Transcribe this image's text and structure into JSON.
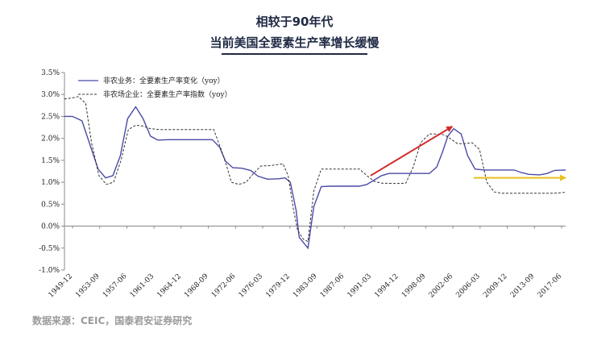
{
  "header": {
    "title": "相较于90年代",
    "subtitle": "当前美国全要素生产率增长缓慢"
  },
  "source": "数据来源：CEIC，国泰君安证券研究",
  "colors": {
    "series1": "#4a4aa8",
    "series2": "#333333",
    "red_arrow": "#d32a2a",
    "yellow_arrow": "#e8c21a",
    "title": "#1f2a44",
    "axis": "#888888"
  },
  "chart_data": {
    "type": "line",
    "x_tick_labels": [
      "1949-12",
      "1953-09",
      "1957-06",
      "1961-03",
      "1964-12",
      "1968-09",
      "1972-06",
      "1976-03",
      "1979-12",
      "1983-09",
      "1987-06",
      "1991-03",
      "1994-12",
      "1998-09",
      "2002-06",
      "2006-03",
      "2009-12",
      "2013-09",
      "2017-06"
    ],
    "y_tick_labels": [
      "-1.0%",
      "-0.5%",
      "0.0%",
      "0.5%",
      "1.0%",
      "1.5%",
      "2.0%",
      "2.5%",
      "3.0%",
      "3.5%"
    ],
    "ylim": [
      -1.0,
      3.5
    ],
    "xlim": [
      1949.92,
      2018.0
    ],
    "grid": false,
    "legend_position": "top-left",
    "series": [
      {
        "name": "非农业务：全要素生产率变化（yoy）",
        "style": "solid",
        "points": [
          [
            1949.9,
            2.5
          ],
          [
            1951.0,
            2.5
          ],
          [
            1952.3,
            2.4
          ],
          [
            1953.5,
            1.8
          ],
          [
            1954.5,
            1.3
          ],
          [
            1955.5,
            1.1
          ],
          [
            1956.5,
            1.15
          ],
          [
            1957.5,
            1.6
          ],
          [
            1958.5,
            2.45
          ],
          [
            1959.6,
            2.72
          ],
          [
            1960.6,
            2.45
          ],
          [
            1961.6,
            2.05
          ],
          [
            1962.6,
            1.96
          ],
          [
            1964.0,
            1.97
          ],
          [
            1966.0,
            1.97
          ],
          [
            1968.0,
            1.97
          ],
          [
            1970.0,
            1.97
          ],
          [
            1971.0,
            1.8
          ],
          [
            1971.8,
            1.48
          ],
          [
            1972.8,
            1.33
          ],
          [
            1974.0,
            1.32
          ],
          [
            1975.2,
            1.27
          ],
          [
            1976.2,
            1.14
          ],
          [
            1977.5,
            1.07
          ],
          [
            1979.0,
            1.08
          ],
          [
            1979.9,
            1.1
          ],
          [
            1980.6,
            1.0
          ],
          [
            1981.4,
            0.35
          ],
          [
            1981.8,
            -0.25
          ],
          [
            1982.5,
            -0.4
          ],
          [
            1983.0,
            -0.5
          ],
          [
            1983.8,
            0.45
          ],
          [
            1984.8,
            0.9
          ],
          [
            1986.0,
            0.91
          ],
          [
            1988.0,
            0.91
          ],
          [
            1990.0,
            0.91
          ],
          [
            1991.0,
            0.95
          ],
          [
            1992.0,
            1.05
          ],
          [
            1993.0,
            1.15
          ],
          [
            1994.0,
            1.2
          ],
          [
            1996.0,
            1.2
          ],
          [
            1998.0,
            1.2
          ],
          [
            1999.5,
            1.2
          ],
          [
            2000.5,
            1.35
          ],
          [
            2001.3,
            1.7
          ],
          [
            2002.0,
            2.05
          ],
          [
            2002.8,
            2.22
          ],
          [
            2003.8,
            2.1
          ],
          [
            2004.7,
            1.6
          ],
          [
            2005.7,
            1.3
          ],
          [
            2007.0,
            1.28
          ],
          [
            2009.0,
            1.28
          ],
          [
            2011.0,
            1.28
          ],
          [
            2012.0,
            1.22
          ],
          [
            2013.0,
            1.18
          ],
          [
            2014.5,
            1.17
          ],
          [
            2015.5,
            1.2
          ],
          [
            2016.5,
            1.27
          ],
          [
            2018.0,
            1.28
          ]
        ]
      },
      {
        "name": "非农场企业：全要素生产率指数（yoy）",
        "style": "dashed",
        "points": [
          [
            1949.9,
            2.9
          ],
          [
            1950.9,
            2.92
          ],
          [
            1951.8,
            2.95
          ],
          [
            1952.8,
            2.8
          ],
          [
            1953.6,
            1.9
          ],
          [
            1954.6,
            1.15
          ],
          [
            1955.6,
            0.95
          ],
          [
            1956.6,
            1.0
          ],
          [
            1957.6,
            1.5
          ],
          [
            1958.6,
            2.2
          ],
          [
            1959.6,
            2.3
          ],
          [
            1960.6,
            2.28
          ],
          [
            1961.6,
            2.22
          ],
          [
            1963.0,
            2.2
          ],
          [
            1965.0,
            2.2
          ],
          [
            1967.0,
            2.2
          ],
          [
            1969.0,
            2.2
          ],
          [
            1970.2,
            2.2
          ],
          [
            1971.2,
            1.75
          ],
          [
            1971.9,
            1.4
          ],
          [
            1972.6,
            1.0
          ],
          [
            1973.6,
            0.95
          ],
          [
            1974.6,
            1.0
          ],
          [
            1975.6,
            1.2
          ],
          [
            1976.6,
            1.37
          ],
          [
            1978.0,
            1.38
          ],
          [
            1979.6,
            1.42
          ],
          [
            1980.3,
            1.15
          ],
          [
            1981.0,
            0.4
          ],
          [
            1981.6,
            -0.1
          ],
          [
            1982.4,
            -0.3
          ],
          [
            1983.0,
            -0.35
          ],
          [
            1983.8,
            0.8
          ],
          [
            1984.8,
            1.3
          ],
          [
            1986.0,
            1.3
          ],
          [
            1988.0,
            1.3
          ],
          [
            1990.0,
            1.3
          ],
          [
            1991.0,
            1.15
          ],
          [
            1992.0,
            1.02
          ],
          [
            1993.0,
            0.98
          ],
          [
            1995.0,
            0.97
          ],
          [
            1996.3,
            0.98
          ],
          [
            1997.3,
            1.35
          ],
          [
            1998.3,
            1.9
          ],
          [
            1999.5,
            2.1
          ],
          [
            2000.5,
            2.1
          ],
          [
            2001.5,
            2.08
          ],
          [
            2002.3,
            2.0
          ],
          [
            2003.3,
            1.88
          ],
          [
            2004.3,
            1.88
          ],
          [
            2005.3,
            1.9
          ],
          [
            2006.3,
            1.75
          ],
          [
            2007.3,
            1.0
          ],
          [
            2008.3,
            0.78
          ],
          [
            2009.3,
            0.75
          ],
          [
            2011.0,
            0.75
          ],
          [
            2013.0,
            0.75
          ],
          [
            2015.0,
            0.75
          ],
          [
            2016.5,
            0.75
          ],
          [
            2018.0,
            0.77
          ]
        ]
      }
    ],
    "annotations": [
      {
        "type": "arrow",
        "color": "red",
        "from": [
          1991.5,
          1.15
        ],
        "to": [
          2002.6,
          2.27
        ]
      },
      {
        "type": "arrow",
        "color": "yellow",
        "from": [
          2005.5,
          1.1
        ],
        "to": [
          2018.0,
          1.1
        ]
      }
    ]
  }
}
